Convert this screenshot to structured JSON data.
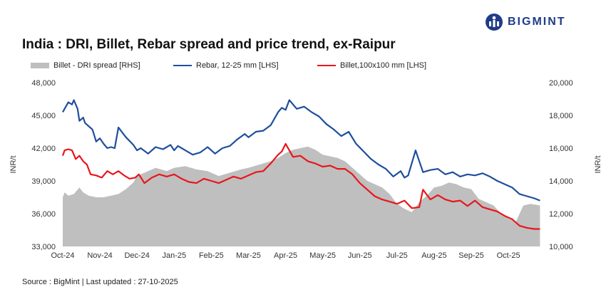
{
  "brand": {
    "name": "BIGMINT",
    "accent": "#1f3c88"
  },
  "source_note": "Source : BigMint | Last updated : 27-10-2025",
  "chart_data": {
    "type": "line",
    "title": "India : DRI, Billet, Rebar spread and price trend, ex-Raipur",
    "xlabel": "",
    "ylabel_left": "INR/t",
    "ylabel_right": "INR/t",
    "ylim_left": [
      33000,
      48000
    ],
    "ylim_right": [
      10000,
      20000
    ],
    "yticks_left": [
      "48,000",
      "45,000",
      "42,000",
      "39,000",
      "36,000",
      "33,000"
    ],
    "yticks_right": [
      "20,000",
      "18,000",
      "16,000",
      "14,000",
      "12,000",
      "10,000"
    ],
    "x_tick_labels": [
      "Oct-24",
      "Nov-24",
      "Dec-24",
      "Jan-25",
      "Feb-25",
      "Mar-25",
      "Apr-25",
      "May-25",
      "Jun-25",
      "Jul-25",
      "Aug-25",
      "Sep-25",
      "Oct-25"
    ],
    "x_range_months": [
      0,
      12.9
    ],
    "grid": false,
    "legend_position": "top",
    "series": [
      {
        "name": "Billet - DRI spread  [RHS]",
        "type": "area",
        "axis": "right",
        "color": "#bfbfbf",
        "x": [
          0,
          0.05,
          0.15,
          0.3,
          0.45,
          0.55,
          0.7,
          0.9,
          1.1,
          1.3,
          1.5,
          1.7,
          1.9,
          2.0,
          2.2,
          2.5,
          2.8,
          3.0,
          3.3,
          3.6,
          3.9,
          4.2,
          4.5,
          4.8,
          5.0,
          5.3,
          5.6,
          5.8,
          6.0,
          6.2,
          6.4,
          6.6,
          6.8,
          7.0,
          7.2,
          7.4,
          7.6,
          7.8,
          8.0,
          8.2,
          8.4,
          8.6,
          8.8,
          9.0,
          9.2,
          9.4,
          9.6,
          9.8,
          10.0,
          10.2,
          10.4,
          10.6,
          10.8,
          11.0,
          11.2,
          11.4,
          11.6,
          11.8,
          12.0,
          12.2,
          12.4,
          12.6,
          12.85
        ],
        "values": [
          13.0,
          13.3,
          13.1,
          13.2,
          13.6,
          13.3,
          13.1,
          13.0,
          13.0,
          13.1,
          13.2,
          13.5,
          13.9,
          14.3,
          14.5,
          14.8,
          14.6,
          14.8,
          14.9,
          14.7,
          14.6,
          14.3,
          14.5,
          14.7,
          14.8,
          15.0,
          15.2,
          15.4,
          15.7,
          15.9,
          16.0,
          16.1,
          15.9,
          15.6,
          15.5,
          15.4,
          15.2,
          14.8,
          14.4,
          14.0,
          13.8,
          13.6,
          13.2,
          12.6,
          12.3,
          12.1,
          12.7,
          13.1,
          13.6,
          13.7,
          13.9,
          13.8,
          13.6,
          13.5,
          12.9,
          12.7,
          12.5,
          12.0,
          11.7,
          11.5,
          12.5,
          12.6,
          12.5
        ]
      },
      {
        "name": "Rebar, 12-25 mm [LHS]",
        "type": "line",
        "axis": "left",
        "color": "#1f4e9e",
        "x": [
          0,
          0.05,
          0.15,
          0.25,
          0.3,
          0.4,
          0.45,
          0.55,
          0.6,
          0.7,
          0.8,
          0.9,
          1.0,
          1.1,
          1.2,
          1.3,
          1.4,
          1.5,
          1.7,
          1.9,
          2.0,
          2.1,
          2.3,
          2.5,
          2.7,
          2.9,
          3.0,
          3.1,
          3.3,
          3.5,
          3.7,
          3.9,
          4.1,
          4.3,
          4.5,
          4.7,
          4.9,
          5.0,
          5.2,
          5.4,
          5.6,
          5.8,
          5.9,
          6.0,
          6.1,
          6.3,
          6.5,
          6.7,
          6.9,
          7.1,
          7.3,
          7.5,
          7.7,
          7.9,
          8.1,
          8.3,
          8.5,
          8.7,
          8.9,
          9.1,
          9.2,
          9.3,
          9.5,
          9.7,
          9.9,
          10.1,
          10.3,
          10.5,
          10.7,
          10.9,
          11.1,
          11.3,
          11.5,
          11.7,
          11.9,
          12.1,
          12.3,
          12.5,
          12.7,
          12.85
        ],
        "values": [
          45300,
          45600,
          46200,
          46000,
          46400,
          45600,
          44500,
          44800,
          44300,
          44000,
          43700,
          42600,
          42900,
          42400,
          42000,
          42100,
          42000,
          43900,
          43000,
          42300,
          41800,
          42000,
          41500,
          42100,
          41900,
          42300,
          41800,
          42200,
          41800,
          41400,
          41600,
          42100,
          41500,
          42000,
          42200,
          42800,
          43300,
          43000,
          43500,
          43600,
          44100,
          45300,
          45700,
          45500,
          46400,
          45600,
          45800,
          45300,
          44900,
          44200,
          43700,
          43100,
          43500,
          42400,
          41700,
          41000,
          40500,
          40100,
          39400,
          39900,
          39300,
          39500,
          41800,
          39800,
          40000,
          40100,
          39600,
          39800,
          39400,
          39600,
          39500,
          39700,
          39400,
          39000,
          38700,
          38400,
          37800,
          37600,
          37400,
          37200
        ]
      },
      {
        "name": "Billet,100x100 mm [LHS]",
        "type": "line",
        "axis": "left",
        "color": "#e8161c",
        "x": [
          0,
          0.05,
          0.15,
          0.25,
          0.35,
          0.45,
          0.55,
          0.65,
          0.75,
          0.9,
          1.05,
          1.2,
          1.35,
          1.5,
          1.65,
          1.8,
          1.95,
          2.05,
          2.2,
          2.4,
          2.6,
          2.8,
          3.0,
          3.2,
          3.4,
          3.6,
          3.8,
          4.0,
          4.2,
          4.4,
          4.6,
          4.8,
          5.0,
          5.2,
          5.4,
          5.6,
          5.8,
          5.9,
          6.0,
          6.1,
          6.2,
          6.4,
          6.6,
          6.8,
          7.0,
          7.2,
          7.4,
          7.6,
          7.8,
          8.0,
          8.2,
          8.4,
          8.6,
          8.8,
          9.0,
          9.2,
          9.4,
          9.6,
          9.7,
          9.9,
          10.1,
          10.3,
          10.5,
          10.7,
          10.9,
          11.1,
          11.3,
          11.5,
          11.7,
          11.9,
          12.1,
          12.3,
          12.5,
          12.7,
          12.85
        ],
        "values": [
          41300,
          41800,
          41900,
          41800,
          41000,
          41300,
          40800,
          40500,
          39600,
          39500,
          39300,
          39900,
          39600,
          39900,
          39500,
          39200,
          39300,
          39600,
          38800,
          39300,
          39600,
          39400,
          39600,
          39200,
          38900,
          38800,
          39200,
          39000,
          38800,
          39100,
          39400,
          39200,
          39500,
          39800,
          39900,
          40600,
          41400,
          41700,
          42400,
          41800,
          41200,
          41300,
          40800,
          40600,
          40300,
          40400,
          40100,
          40100,
          39600,
          38800,
          38200,
          37600,
          37300,
          37100,
          36900,
          37200,
          36500,
          36600,
          38200,
          37300,
          37700,
          37300,
          37100,
          37200,
          36700,
          37200,
          36600,
          36400,
          36200,
          35800,
          35500,
          34900,
          34700,
          34600,
          34600
        ]
      }
    ]
  }
}
